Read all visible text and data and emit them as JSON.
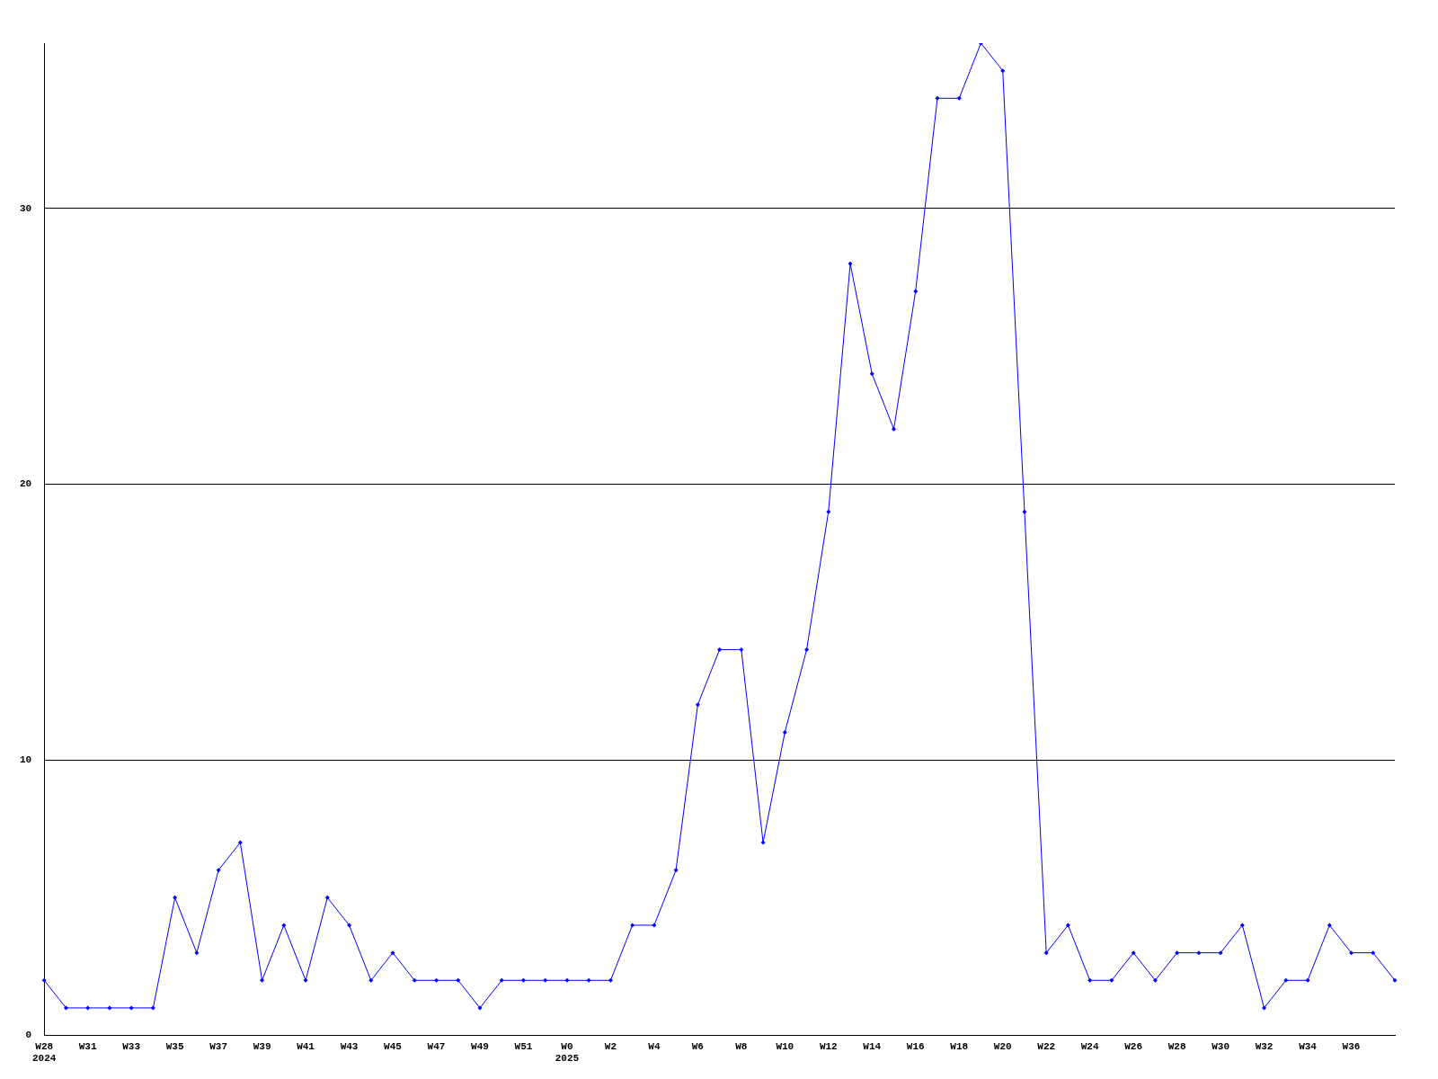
{
  "chart_data": {
    "type": "line",
    "categories": [
      "W28\n2024",
      null,
      "W31",
      null,
      "W33",
      null,
      "W35",
      null,
      "W37",
      null,
      "W39",
      null,
      "W41",
      null,
      "W43",
      null,
      "W45",
      null,
      "W47",
      null,
      "W49",
      null,
      "W51",
      null,
      "W0\n2025",
      null,
      "W2",
      null,
      "W4",
      null,
      "W6",
      null,
      "W8",
      null,
      "W10",
      null,
      "W12",
      null,
      "W14",
      null,
      "W16",
      null,
      "W18",
      null,
      "W20",
      null,
      "W22",
      null,
      "W24",
      null,
      "W26",
      null,
      "W28",
      null,
      "W30",
      null,
      "W32",
      null,
      "W34",
      null,
      "W36",
      null,
      null
    ],
    "series": [
      {
        "color": "#0000ff",
        "values": [
          2,
          1,
          1,
          1,
          1,
          1,
          5,
          3,
          6,
          7,
          2,
          4,
          2,
          5,
          4,
          2,
          3,
          2,
          2,
          2,
          1,
          2,
          2,
          2,
          2,
          2,
          2,
          4,
          4,
          6,
          12,
          14,
          14,
          7,
          11,
          14,
          19,
          28,
          24,
          22,
          27,
          34,
          34,
          36,
          35,
          19,
          3,
          4,
          2,
          2,
          3,
          2,
          3,
          3,
          3,
          4,
          1,
          2,
          2,
          4,
          3,
          3,
          2
        ]
      }
    ],
    "ylim": [
      0,
      36
    ],
    "yticks": [
      0,
      10,
      20,
      30
    ],
    "grid": "y",
    "legend": false,
    "marker": "diamond",
    "line_style": "solid"
  }
}
